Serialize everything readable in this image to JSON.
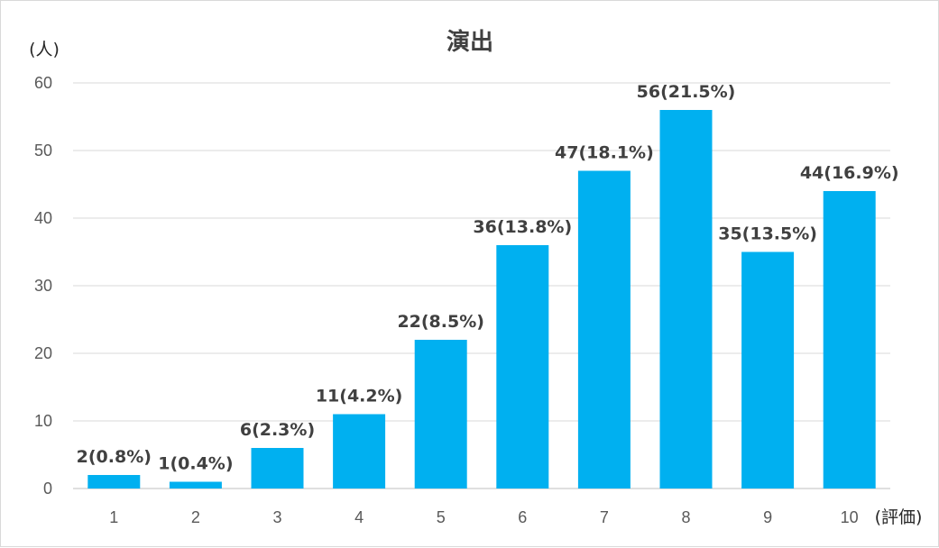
{
  "chart_data": {
    "type": "bar",
    "title": "演出",
    "ylabel": "(人)",
    "xlabel": "(評価)",
    "categories": [
      "1",
      "2",
      "3",
      "4",
      "5",
      "6",
      "7",
      "8",
      "9",
      "10"
    ],
    "values": [
      2,
      1,
      6,
      11,
      22,
      36,
      47,
      56,
      35,
      44
    ],
    "data_labels": [
      "2(0.8%)",
      "1(0.4%)",
      "6(2.3%)",
      "11(4.2%)",
      "22(8.5%)",
      "36(13.8%)",
      "47(18.1%)",
      "56(21.5%)",
      "35(13.5%)",
      "44(16.9%)"
    ],
    "ylim": [
      0,
      60
    ],
    "yticks": [
      "0",
      "10",
      "20",
      "30",
      "40",
      "50",
      "60"
    ],
    "grid": true,
    "legend": "none",
    "bar_color": "#00b0f0"
  }
}
